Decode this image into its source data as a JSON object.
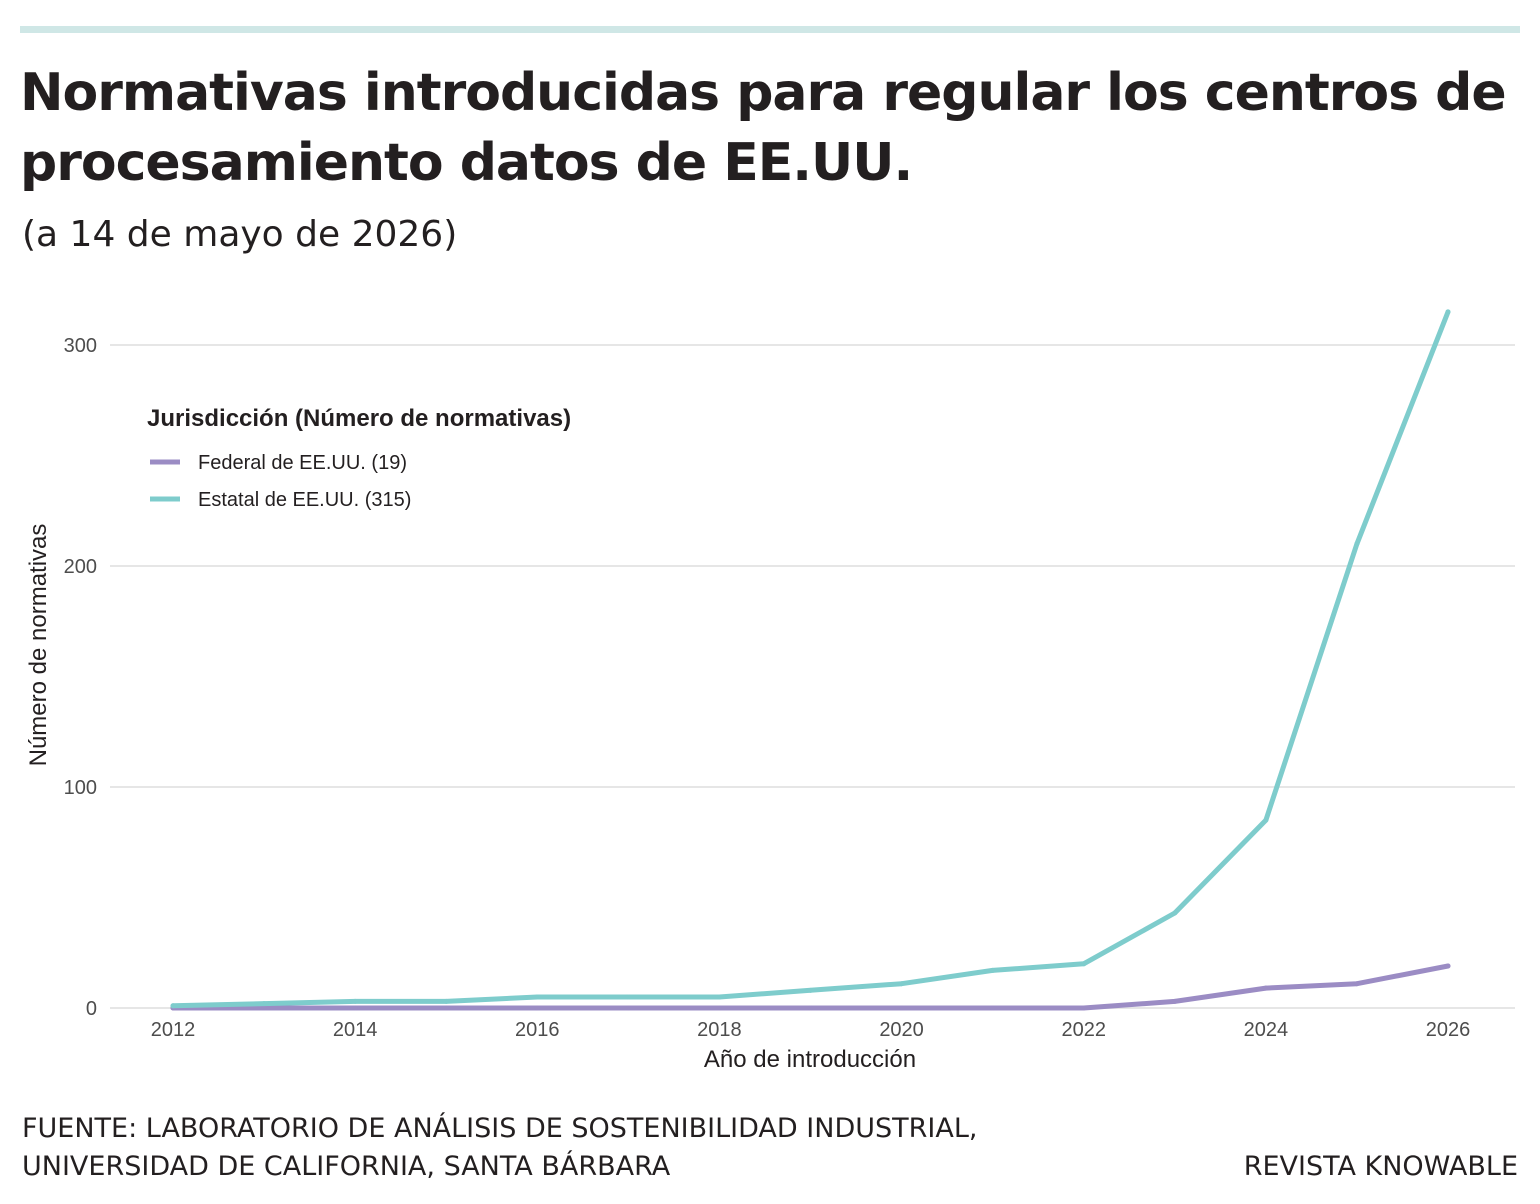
{
  "header": {
    "title": "Normativas introducidas para regular los centros de procesamiento datos de EE.UU.",
    "subtitle": "(a 14 de mayo de 2026)"
  },
  "footer": {
    "source_line1": "FUENTE: LABORATORIO DE ANÁLISIS DE SOSTENIBILIDAD INDUSTRIAL,",
    "source_line2": "UNIVERSIDAD DE CALIFORNIA, SANTA BÁRBARA",
    "brand": "REVISTA KNOWABLE"
  },
  "colors": {
    "federal": "#9b8cc4",
    "estatal": "#7ecccc",
    "grid": "#e6e6e6",
    "top_rule": "#cfe7e6"
  },
  "chart_data": {
    "type": "line",
    "xlabel": "Año de introducción",
    "ylabel": "Número de normativas",
    "xlim": [
      2011.5,
      2026.7
    ],
    "ylim": [
      0,
      330
    ],
    "x_ticks": [
      2012,
      2014,
      2016,
      2018,
      2020,
      2022,
      2024,
      2026
    ],
    "y_ticks": [
      0,
      100,
      200,
      300
    ],
    "grid": "horizontal",
    "legend": {
      "title": "Jurisdicción (Número de normativas)",
      "placement": "top-left"
    },
    "series": [
      {
        "name": "Federal de EE.UU. (19)",
        "color": "#9b8cc4",
        "x": [
          2012,
          2013,
          2014,
          2015,
          2016,
          2017,
          2018,
          2019,
          2020,
          2021,
          2022,
          2023,
          2024,
          2025,
          2026
        ],
        "y": [
          0,
          0,
          0,
          0,
          0,
          0,
          0,
          0,
          0,
          0,
          0,
          3,
          9,
          11,
          19
        ]
      },
      {
        "name": "Estatal de EE.UU. (315)",
        "color": "#7ecccc",
        "x": [
          2012,
          2013,
          2014,
          2015,
          2016,
          2017,
          2018,
          2019,
          2020,
          2021,
          2022,
          2023,
          2024,
          2025,
          2026
        ],
        "y": [
          1,
          2,
          3,
          3,
          5,
          5,
          5,
          8,
          11,
          17,
          20,
          43,
          85,
          210,
          315
        ]
      }
    ]
  }
}
